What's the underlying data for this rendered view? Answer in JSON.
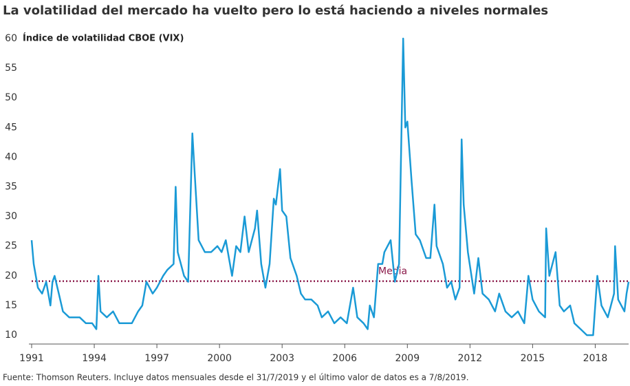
{
  "chart_data": {
    "type": "line",
    "title": "La volatilidad del mercado ha vuelto pero lo está haciendo a niveles normales",
    "y_label": "Índice de volatilidad CBOE (VIX)",
    "source": "Fuente: Thomson Reuters. Incluye datos mensuales desde el 31/7/2019 y el último valor de datos es a 7/8/2019.",
    "x": [
      1991.0,
      1991.1,
      1991.3,
      1991.5,
      1991.7,
      1991.9,
      1992.0,
      1992.1,
      1992.3,
      1992.5,
      1992.8,
      1993.0,
      1993.3,
      1993.6,
      1993.9,
      1994.1,
      1994.2,
      1994.3,
      1994.6,
      1994.9,
      1995.2,
      1995.5,
      1995.8,
      1996.1,
      1996.3,
      1996.5,
      1996.8,
      1997.0,
      1997.3,
      1997.5,
      1997.8,
      1997.9,
      1998.0,
      1998.3,
      1998.5,
      1998.7,
      1998.8,
      1999.0,
      1999.3,
      1999.6,
      1999.9,
      2000.1,
      2000.3,
      2000.6,
      2000.8,
      2001.0,
      2001.2,
      2001.4,
      2001.7,
      2001.8,
      2002.0,
      2002.2,
      2002.4,
      2002.6,
      2002.7,
      2002.9,
      2003.0,
      2003.2,
      2003.4,
      2003.7,
      2003.9,
      2004.1,
      2004.4,
      2004.7,
      2004.9,
      2005.2,
      2005.5,
      2005.8,
      2006.1,
      2006.4,
      2006.6,
      2006.9,
      2007.1,
      2007.2,
      2007.4,
      2007.6,
      2007.8,
      2007.9,
      2008.2,
      2008.4,
      2008.6,
      2008.8,
      2008.9,
      2009.0,
      2009.2,
      2009.4,
      2009.6,
      2009.9,
      2010.1,
      2010.3,
      2010.4,
      2010.7,
      2010.9,
      2011.1,
      2011.3,
      2011.5,
      2011.6,
      2011.7,
      2011.9,
      2012.2,
      2012.4,
      2012.6,
      2012.9,
      2013.2,
      2013.4,
      2013.7,
      2014.0,
      2014.3,
      2014.6,
      2014.8,
      2015.0,
      2015.3,
      2015.6,
      2015.65,
      2015.8,
      2016.1,
      2016.3,
      2016.5,
      2016.8,
      2017.0,
      2017.3,
      2017.6,
      2017.9,
      2018.1,
      2018.3,
      2018.6,
      2018.9,
      2018.95,
      2019.1,
      2019.4,
      2019.5,
      2019.6
    ],
    "series": [
      {
        "name": "VIX",
        "color": "#1a9ad6",
        "values": [
          26,
          22,
          18,
          17,
          19,
          15,
          19,
          20,
          17,
          14,
          13,
          13,
          13,
          12,
          12,
          11,
          20,
          14,
          13,
          14,
          12,
          12,
          12,
          14,
          15,
          19,
          17,
          18,
          20,
          21,
          22,
          35,
          24,
          20,
          19,
          44,
          38,
          26,
          24,
          24,
          25,
          24,
          26,
          20,
          25,
          24,
          30,
          24,
          28,
          31,
          22,
          18,
          22,
          33,
          32,
          38,
          31,
          30,
          23,
          20,
          17,
          16,
          16,
          15,
          13,
          14,
          12,
          13,
          12,
          18,
          13,
          12,
          11,
          15,
          13,
          22,
          22,
          24,
          26,
          19,
          22,
          60,
          45,
          46,
          36,
          27,
          26,
          23,
          23,
          32,
          25,
          22,
          18,
          19,
          16,
          18,
          43,
          32,
          24,
          17,
          23,
          17,
          16,
          14,
          17,
          14,
          13,
          14,
          12,
          20,
          16,
          14,
          13,
          28,
          20,
          24,
          15,
          14,
          15,
          12,
          11,
          10,
          10,
          20,
          15,
          13,
          17,
          25,
          16,
          14,
          17,
          19
        ]
      }
    ],
    "reference_line": {
      "value": 19.1,
      "label": "Media",
      "color": "#8b1a4a"
    },
    "xlim": [
      1991,
      2019.6
    ],
    "xticks": [
      1991,
      1994,
      1997,
      2000,
      2003,
      2006,
      2009,
      2012,
      2015,
      2018
    ],
    "ylim": [
      8.5,
      60
    ],
    "yticks": [
      10,
      15,
      20,
      25,
      30,
      35,
      40,
      45,
      50,
      55,
      60
    ]
  }
}
